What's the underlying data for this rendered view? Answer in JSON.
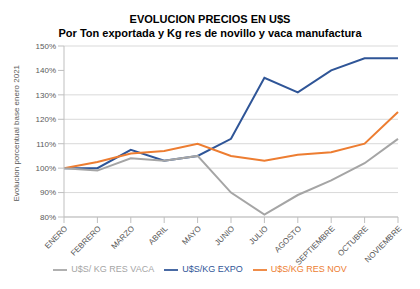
{
  "chart_data": {
    "type": "line",
    "title": "EVOLUCION PRECIOS EN U$S",
    "subtitle": "Por Ton exportada y Kg res de novillo y vaca manufactura",
    "y_label": "Evolucion porcentual base enero 2021",
    "categories": [
      "ENERO",
      "FEBRERO",
      "MARZO",
      "ABRIL",
      "MAYO",
      "JUNIO",
      "JULIO",
      "AGOSTO",
      "SEPTIEMBRE",
      "OCTUBRE",
      "NOVIEMBRE"
    ],
    "series": [
      {
        "name": "U$S/KG EXPO",
        "color": "#2f5597",
        "values": [
          100,
          100,
          107.5,
          103,
          105,
          112,
          137,
          131,
          140,
          145,
          145
        ]
      },
      {
        "name": "U$S/KG RES NOV",
        "color": "#ed7d31",
        "values": [
          100,
          102.5,
          106,
          107,
          110,
          105,
          103,
          105.5,
          106.5,
          110,
          123
        ]
      },
      {
        "name": "U$S/ KG RES VACA",
        "color": "#a5a5a5",
        "values": [
          100,
          99,
          104,
          103,
          105,
          90,
          81,
          89,
          95,
          102,
          112
        ]
      }
    ],
    "ylim": [
      80,
      150
    ],
    "yticks": [
      {
        "value": 80,
        "label": "80%"
      },
      {
        "value": 90,
        "label": "90%"
      },
      {
        "value": 100,
        "label": "100%"
      },
      {
        "value": 110,
        "label": "110%"
      },
      {
        "value": 120,
        "label": "120%"
      },
      {
        "value": 130,
        "label": "130%"
      },
      {
        "value": 140,
        "label": "140%"
      },
      {
        "value": 150,
        "label": "150%"
      }
    ],
    "grid": true,
    "legend": "bottom"
  }
}
